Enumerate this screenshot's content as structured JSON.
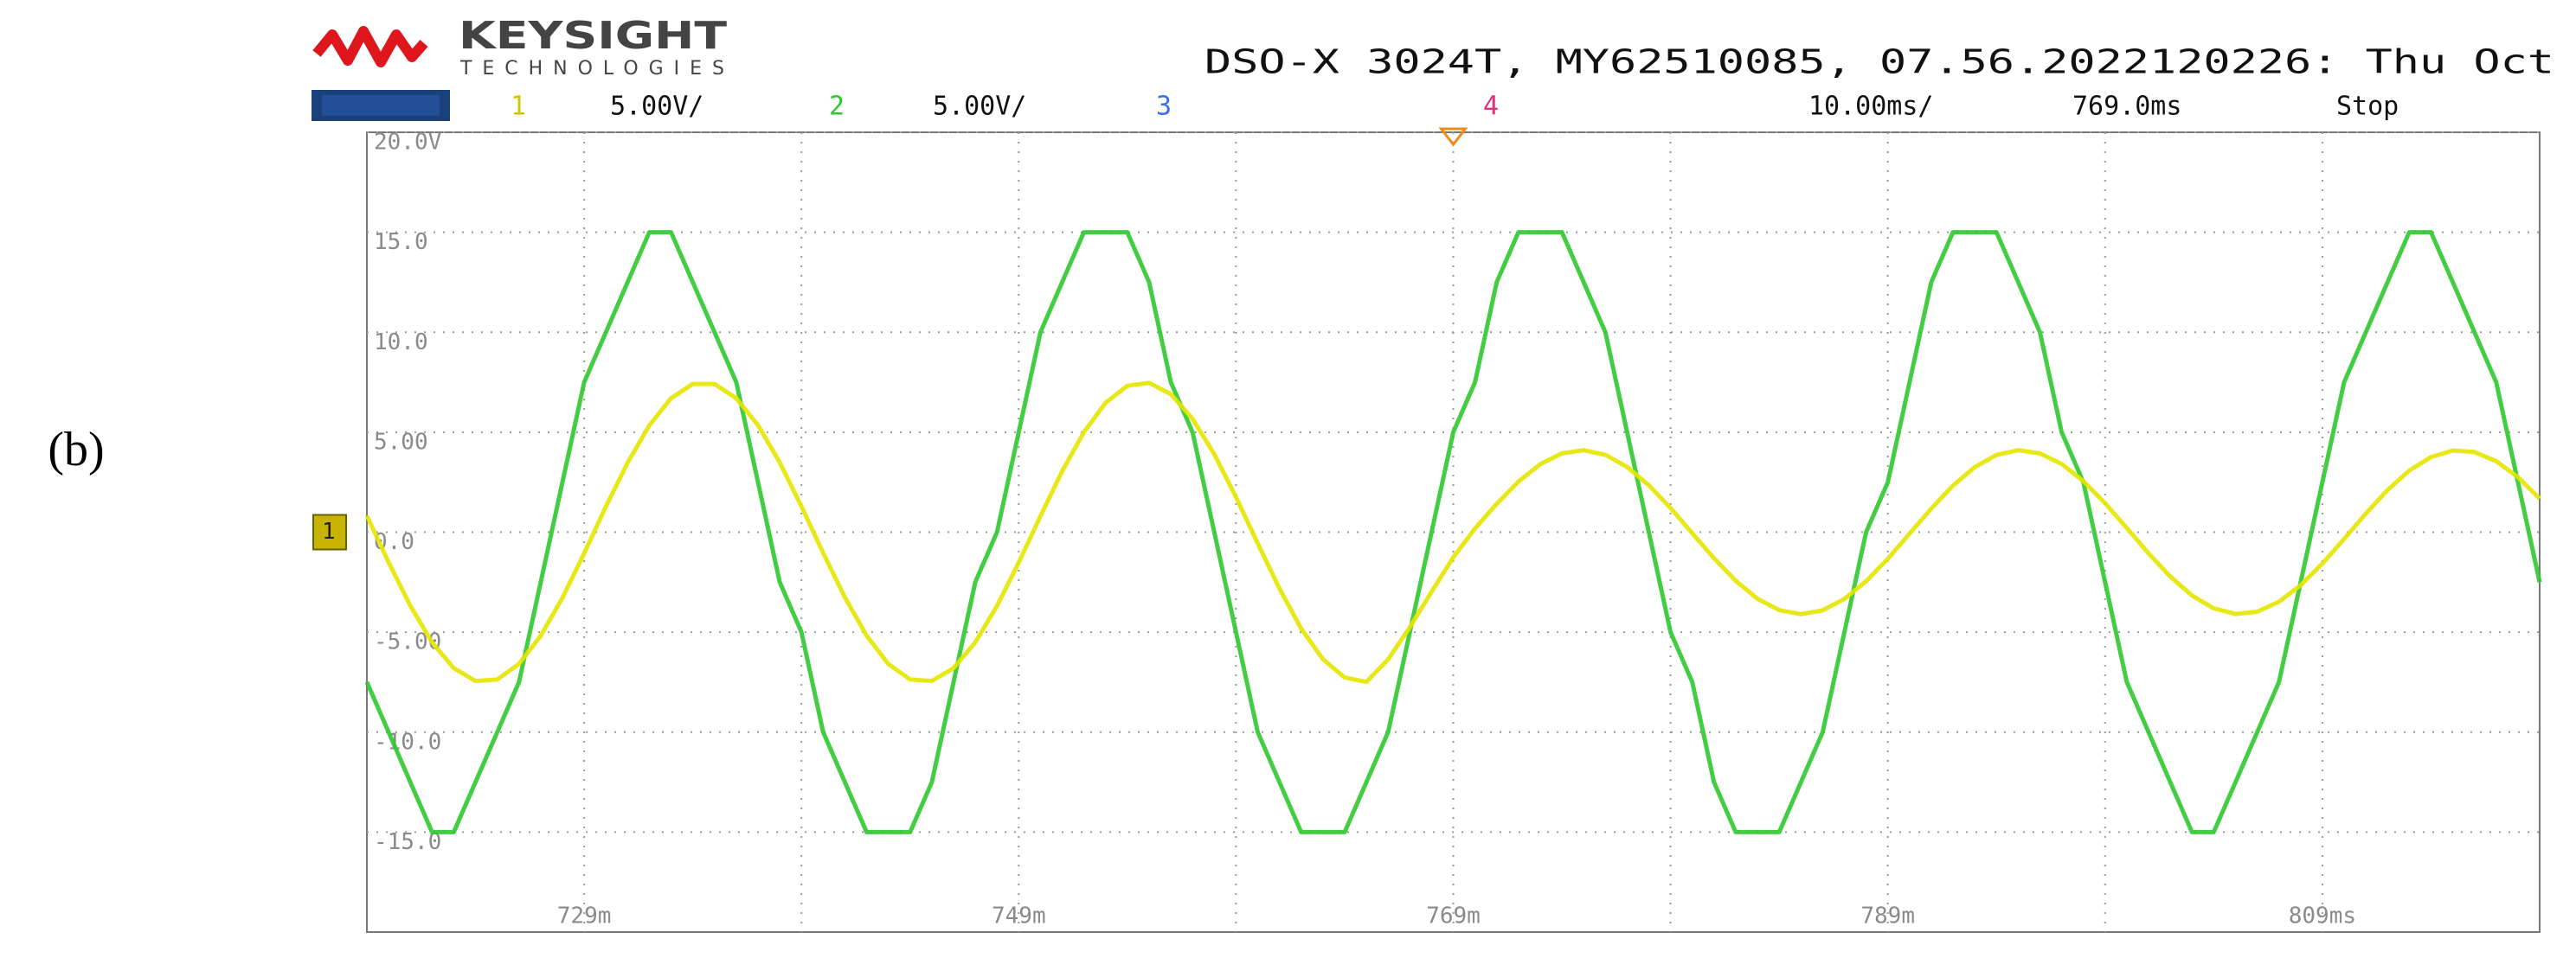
{
  "panel_label": "(b)",
  "header": {
    "brand": "KEYSIGHT",
    "brand_sub": "TECHNOLOGIES",
    "instrument": "DSO-X 3024T, MY62510085, 07.56.2022120226: Thu Oct",
    "channels": [
      {
        "label": "1",
        "scale": "5.00V/"
      },
      {
        "label": "2",
        "scale": "5.00V/"
      },
      {
        "label": "3"
      },
      {
        "label": "4"
      }
    ],
    "timebase": "10.00ms/",
    "delay": "769.0ms",
    "status": "Stop"
  },
  "chart_data": {
    "type": "line",
    "x": [
      719,
      720,
      721,
      722,
      723,
      724,
      725,
      726,
      727,
      728,
      729,
      730,
      731,
      732,
      733,
      734,
      735,
      736,
      737,
      738,
      739,
      740,
      741,
      742,
      743,
      744,
      745,
      746,
      747,
      748,
      749,
      750,
      751,
      752,
      753,
      754,
      755,
      756,
      757,
      758,
      759,
      760,
      761,
      762,
      763,
      764,
      765,
      766,
      767,
      768,
      769,
      770,
      771,
      772,
      773,
      774,
      775,
      776,
      777,
      778,
      779,
      780,
      781,
      782,
      783,
      784,
      785,
      786,
      787,
      788,
      789,
      790,
      791,
      792,
      793,
      794,
      795,
      796,
      797,
      798,
      799,
      800,
      801,
      802,
      803,
      804,
      805,
      806,
      807,
      808,
      809,
      810,
      811,
      812,
      813,
      814,
      815,
      816,
      817,
      818,
      819
    ],
    "series": [
      {
        "color": "#2ec82e",
        "values": [
          -7.5,
          -10,
          -12.5,
          -15,
          -15,
          -12.5,
          -10,
          -7.5,
          -2.5,
          2.5,
          7.5,
          10,
          12.5,
          15,
          15,
          12.5,
          10,
          7.5,
          2.5,
          -2.5,
          -5,
          -10,
          -12.5,
          -15,
          -15,
          -15,
          -12.5,
          -7.5,
          -2.5,
          0,
          5,
          10,
          12.5,
          15,
          15,
          15,
          12.5,
          7.5,
          5,
          0,
          -5,
          -10,
          -12.5,
          -15,
          -15,
          -15,
          -12.5,
          -10,
          -5,
          0,
          5,
          7.5,
          12.5,
          15,
          15,
          15,
          12.5,
          10,
          5,
          0,
          -5,
          -7.5,
          -12.5,
          -15,
          -15,
          -15,
          -12.5,
          -10,
          -5,
          0,
          2.5,
          7.5,
          12.5,
          15,
          15,
          15,
          12.5,
          10,
          5,
          2.5,
          -2.5,
          -7.5,
          -10,
          -12.5,
          -15,
          -15,
          -12.5,
          -10,
          -7.5,
          -2.5,
          2.5,
          7.5,
          10,
          12.5,
          15,
          15,
          12.5,
          10,
          7.5,
          2.5,
          -2.5
        ]
      },
      {
        "color": "#e6e600",
        "values": [
          0.82,
          -1.51,
          -3.68,
          -5.51,
          -6.8,
          -7.44,
          -7.37,
          -6.59,
          -5.18,
          -3.28,
          -1.06,
          1.28,
          3.47,
          5.34,
          6.7,
          7.41,
          7.41,
          6.7,
          5.35,
          3.49,
          1.29,
          -1.04,
          -3.26,
          -5.17,
          -6.59,
          -7.37,
          -7.44,
          -6.8,
          -5.51,
          -3.69,
          -1.52,
          0.8,
          3.05,
          5.0,
          6.47,
          7.32,
          7.47,
          6.9,
          5.67,
          3.9,
          1.75,
          -0.56,
          -2.82,
          -4.82,
          -6.35,
          -7.27,
          -7.49,
          -6.36,
          -4.76,
          -2.98,
          -1.26,
          0.18,
          1.42,
          2.53,
          3.4,
          3.94,
          4.1,
          3.87,
          3.26,
          2.35,
          1.21,
          -0.05,
          -1.3,
          -2.43,
          -3.33,
          -3.9,
          -4.1,
          -3.91,
          -3.34,
          -2.45,
          -1.33,
          -0.08,
          1.18,
          2.33,
          3.25,
          3.86,
          4.1,
          3.94,
          3.41,
          2.55,
          1.45,
          0.21,
          -1.06,
          -2.22,
          -3.17,
          -3.81,
          -4.09,
          -3.98,
          -3.48,
          -2.65,
          -1.57,
          -0.34,
          0.93,
          2.11,
          3.08,
          3.76,
          4.08,
          4.01,
          3.55,
          2.75,
          1.68
        ]
      }
    ],
    "xlim": [
      719,
      819
    ],
    "xticks": [
      {
        "value": 729,
        "label": "729m"
      },
      {
        "value": 739,
        "label": null
      },
      {
        "value": 749,
        "label": "749m"
      },
      {
        "value": 759,
        "label": null
      },
      {
        "value": 769,
        "label": "769m"
      },
      {
        "value": 779,
        "label": null
      },
      {
        "value": 789,
        "label": "789m"
      },
      {
        "value": 799,
        "label": null
      },
      {
        "value": 809,
        "label": "809ms"
      }
    ],
    "ylim": [
      -20,
      20
    ],
    "yticks": [
      {
        "value": 20,
        "label": "20.0V"
      },
      {
        "value": 15,
        "label": "15.0"
      },
      {
        "value": 10,
        "label": "10.0"
      },
      {
        "value": 5,
        "label": "5.00"
      },
      {
        "value": 0,
        "label": "0.0"
      },
      {
        "value": -5,
        "label": "-5.00"
      },
      {
        "value": -10,
        "label": "-10.0"
      },
      {
        "value": -15,
        "label": "-15.0"
      }
    ],
    "grid": true
  }
}
